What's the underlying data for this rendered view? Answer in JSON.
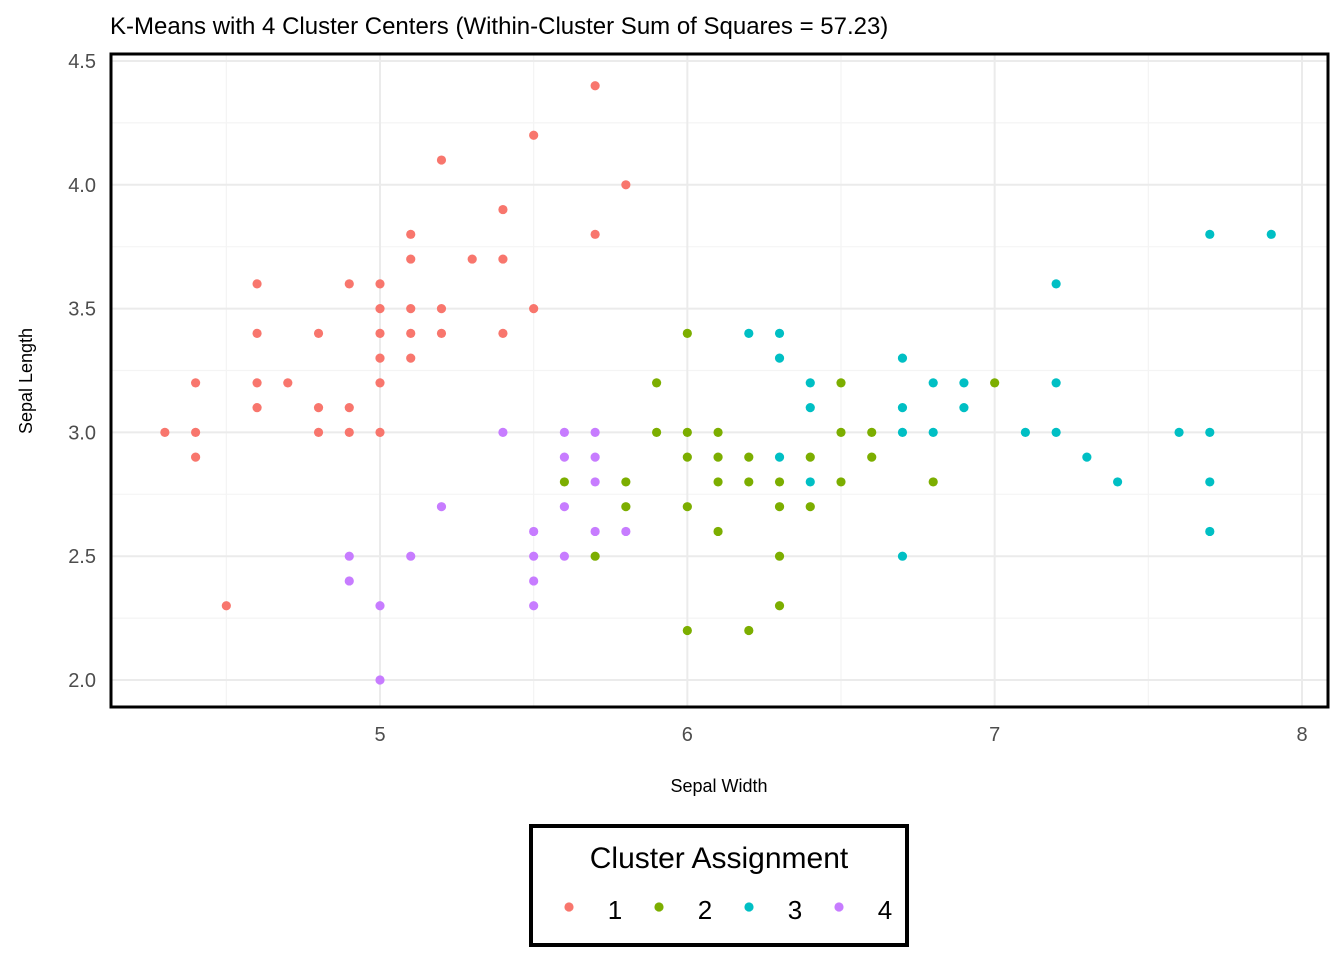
{
  "chart_data": {
    "type": "scatter",
    "title": "K-Means with 4 Cluster Centers (Within-Cluster Sum of Squares = 57.23)",
    "xlabel": "Sepal Width",
    "ylabel": "Sepal Length",
    "xlim": [
      4.2,
      8.1
    ],
    "ylim": [
      1.9,
      4.5
    ],
    "x_ticks": [
      5,
      6,
      7,
      8
    ],
    "x_tick_labels": [
      "5",
      "6",
      "7",
      "8"
    ],
    "y_ticks": [
      2.0,
      2.5,
      3.0,
      3.5,
      4.0,
      4.5
    ],
    "y_tick_labels": [
      "2.0",
      "2.5",
      "3.0",
      "3.5",
      "4.0",
      "4.5"
    ],
    "grid": true,
    "legend": {
      "title": "Cluster Assignment",
      "position": "bottom",
      "entries": [
        "1",
        "2",
        "3",
        "4"
      ]
    },
    "series": [
      {
        "name": "1",
        "color": "#F8766D",
        "points": [
          [
            5.7,
            4.4
          ],
          [
            5.5,
            4.2
          ],
          [
            5.2,
            4.1
          ],
          [
            5.8,
            4.0
          ],
          [
            5.4,
            3.9
          ],
          [
            5.1,
            3.8
          ],
          [
            5.7,
            3.8
          ],
          [
            5.1,
            3.7
          ],
          [
            5.3,
            3.7
          ],
          [
            5.4,
            3.7
          ],
          [
            4.6,
            3.6
          ],
          [
            4.9,
            3.6
          ],
          [
            5.0,
            3.6
          ],
          [
            5.0,
            3.5
          ],
          [
            5.1,
            3.5
          ],
          [
            5.2,
            3.5
          ],
          [
            5.5,
            3.5
          ],
          [
            4.6,
            3.4
          ],
          [
            4.8,
            3.4
          ],
          [
            5.0,
            3.4
          ],
          [
            5.1,
            3.4
          ],
          [
            5.2,
            3.4
          ],
          [
            5.4,
            3.4
          ],
          [
            5.0,
            3.3
          ],
          [
            5.1,
            3.3
          ],
          [
            4.4,
            3.2
          ],
          [
            4.6,
            3.2
          ],
          [
            4.7,
            3.2
          ],
          [
            5.0,
            3.2
          ],
          [
            4.6,
            3.1
          ],
          [
            4.8,
            3.1
          ],
          [
            4.9,
            3.1
          ],
          [
            4.3,
            3.0
          ],
          [
            4.4,
            3.0
          ],
          [
            4.8,
            3.0
          ],
          [
            4.9,
            3.0
          ],
          [
            5.0,
            3.0
          ],
          [
            4.4,
            2.9
          ],
          [
            4.5,
            2.3
          ]
        ]
      },
      {
        "name": "2",
        "color": "#7CAE00",
        "points": [
          [
            6.0,
            3.4
          ],
          [
            5.9,
            3.2
          ],
          [
            6.5,
            3.2
          ],
          [
            7.0,
            3.2
          ],
          [
            5.9,
            3.0
          ],
          [
            6.0,
            3.0
          ],
          [
            6.1,
            3.0
          ],
          [
            6.5,
            3.0
          ],
          [
            6.6,
            3.0
          ],
          [
            6.0,
            2.9
          ],
          [
            6.1,
            2.9
          ],
          [
            6.2,
            2.9
          ],
          [
            6.4,
            2.9
          ],
          [
            6.6,
            2.9
          ],
          [
            5.6,
            2.8
          ],
          [
            5.8,
            2.8
          ],
          [
            6.1,
            2.8
          ],
          [
            6.2,
            2.8
          ],
          [
            6.3,
            2.8
          ],
          [
            6.5,
            2.8
          ],
          [
            6.8,
            2.8
          ],
          [
            5.8,
            2.7
          ],
          [
            6.0,
            2.7
          ],
          [
            6.3,
            2.7
          ],
          [
            6.4,
            2.7
          ],
          [
            6.1,
            2.6
          ],
          [
            5.7,
            2.5
          ],
          [
            6.3,
            2.5
          ],
          [
            6.3,
            2.3
          ],
          [
            6.0,
            2.2
          ],
          [
            6.2,
            2.2
          ]
        ]
      },
      {
        "name": "3",
        "color": "#00BFC4",
        "points": [
          [
            7.7,
            3.8
          ],
          [
            7.9,
            3.8
          ],
          [
            7.2,
            3.6
          ],
          [
            6.2,
            3.4
          ],
          [
            6.3,
            3.4
          ],
          [
            6.3,
            3.3
          ],
          [
            6.7,
            3.3
          ],
          [
            6.4,
            3.2
          ],
          [
            6.8,
            3.2
          ],
          [
            6.9,
            3.2
          ],
          [
            7.2,
            3.2
          ],
          [
            6.4,
            3.1
          ],
          [
            6.7,
            3.1
          ],
          [
            6.9,
            3.1
          ],
          [
            6.7,
            3.0
          ],
          [
            6.8,
            3.0
          ],
          [
            7.1,
            3.0
          ],
          [
            7.2,
            3.0
          ],
          [
            7.6,
            3.0
          ],
          [
            7.7,
            3.0
          ],
          [
            6.3,
            2.9
          ],
          [
            7.3,
            2.9
          ],
          [
            6.4,
            2.8
          ],
          [
            7.4,
            2.8
          ],
          [
            7.7,
            2.8
          ],
          [
            7.7,
            2.6
          ],
          [
            6.7,
            2.5
          ]
        ]
      },
      {
        "name": "4",
        "color": "#C77CFF",
        "points": [
          [
            5.4,
            3.0
          ],
          [
            5.6,
            3.0
          ],
          [
            5.7,
            3.0
          ],
          [
            5.6,
            2.9
          ],
          [
            5.7,
            2.9
          ],
          [
            5.7,
            2.8
          ],
          [
            5.2,
            2.7
          ],
          [
            5.6,
            2.7
          ],
          [
            5.5,
            2.6
          ],
          [
            5.7,
            2.6
          ],
          [
            5.8,
            2.6
          ],
          [
            4.9,
            2.5
          ],
          [
            5.1,
            2.5
          ],
          [
            5.5,
            2.5
          ],
          [
            5.6,
            2.5
          ],
          [
            4.9,
            2.4
          ],
          [
            5.5,
            2.4
          ],
          [
            5.0,
            2.3
          ],
          [
            5.5,
            2.3
          ],
          [
            5.0,
            2.0
          ]
        ]
      }
    ]
  }
}
